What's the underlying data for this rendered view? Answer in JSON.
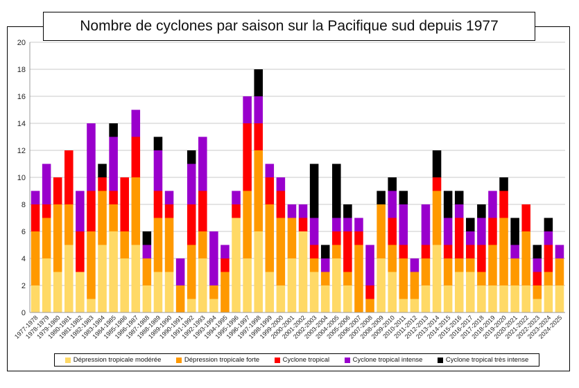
{
  "chart_data": {
    "type": "bar",
    "stacked": true,
    "title": "Nombre de cyclones par saison sur la Pacifique sud depuis 1977",
    "xlabel": "",
    "ylabel": "",
    "ylim": [
      0,
      20
    ],
    "yticks": [
      0,
      2,
      4,
      6,
      8,
      10,
      12,
      14,
      16,
      18,
      20
    ],
    "grid": true,
    "legend_position": "bottom",
    "categories": [
      "1977-1978",
      "1978-1979",
      "1979-1980",
      "1980-1981",
      "1981-1982",
      "1982-1983",
      "1983-1984",
      "1984-1985",
      "1985-1986",
      "1986-1987",
      "1987-1988",
      "1988-1989",
      "1989-1990",
      "1990-1991",
      "1991-1992",
      "1992-1993",
      "1993-1994",
      "1994-1995",
      "1995-1996",
      "1996-1997",
      "1997-1998",
      "1998-1999",
      "1999-2000",
      "2000-2001",
      "2001-2002",
      "2002-2003",
      "2003-2004",
      "2004-2005",
      "2005-2006",
      "2006-2007",
      "2007-2008",
      "2008-2009",
      "2009-2010",
      "2010-2011",
      "2011-2012",
      "2012-2013",
      "2013-2014",
      "2014-2015",
      "2015-2016",
      "2016-2017",
      "2017-2018",
      "2018-2019",
      "2019-2020",
      "2020-2021",
      "2021-2022",
      "2022-2023",
      "2023-2024",
      "2024-2025"
    ],
    "series": [
      {
        "name": "Dépression tropicale modérée",
        "color": "#ffd966",
        "values": [
          2,
          4,
          3,
          5,
          3,
          1,
          5,
          6,
          4,
          5,
          2,
          3,
          3,
          0,
          1,
          4,
          1,
          0,
          7,
          4,
          6,
          3,
          2,
          4,
          6,
          3,
          2,
          4,
          2,
          0,
          0,
          4,
          3,
          1,
          1,
          2,
          5,
          2,
          3,
          3,
          2,
          2,
          2,
          2,
          2,
          1,
          2,
          2
        ]
      },
      {
        "name": "Dépression tropicale forte",
        "color": "#ff9900",
        "values": [
          4,
          3,
          5,
          3,
          0,
          5,
          4,
          2,
          2,
          5,
          2,
          4,
          4,
          2,
          4,
          2,
          1,
          3,
          0,
          5,
          6,
          5,
          5,
          3,
          0,
          1,
          1,
          1,
          1,
          5,
          1,
          4,
          2,
          3,
          2,
          2,
          4,
          2,
          1,
          1,
          1,
          3,
          5,
          2,
          4,
          1,
          1,
          2
        ]
      },
      {
        "name": "Cyclone tropical",
        "color": "#ff0000",
        "values": [
          2,
          1,
          2,
          4,
          3,
          3,
          1,
          1,
          4,
          3,
          0,
          2,
          1,
          0,
          3,
          3,
          0,
          1,
          1,
          5,
          2,
          2,
          2,
          0,
          1,
          1,
          0,
          1,
          3,
          1,
          1,
          0,
          2,
          1,
          0,
          1,
          1,
          1,
          3,
          1,
          2,
          2,
          2,
          0,
          2,
          1,
          2,
          0
        ]
      },
      {
        "name": "Cyclone tropical intense",
        "color": "#9900cc",
        "values": [
          1,
          3,
          0,
          0,
          3,
          5,
          0,
          4,
          0,
          2,
          1,
          3,
          1,
          2,
          3,
          4,
          4,
          1,
          1,
          2,
          2,
          1,
          1,
          1,
          1,
          2,
          1,
          1,
          1,
          1,
          3,
          0,
          2,
          3,
          1,
          3,
          0,
          2,
          1,
          1,
          2,
          2,
          0,
          1,
          0,
          1,
          1,
          1
        ]
      },
      {
        "name": "Cyclone tropical très intense",
        "color": "#000000",
        "values": [
          0,
          0,
          0,
          0,
          0,
          0,
          1,
          1,
          0,
          0,
          1,
          1,
          0,
          0,
          1,
          0,
          0,
          0,
          0,
          0,
          2,
          0,
          0,
          0,
          0,
          4,
          1,
          4,
          1,
          0,
          0,
          1,
          1,
          1,
          0,
          0,
          2,
          2,
          1,
          1,
          1,
          0,
          1,
          2,
          0,
          1,
          1,
          0
        ]
      }
    ]
  }
}
